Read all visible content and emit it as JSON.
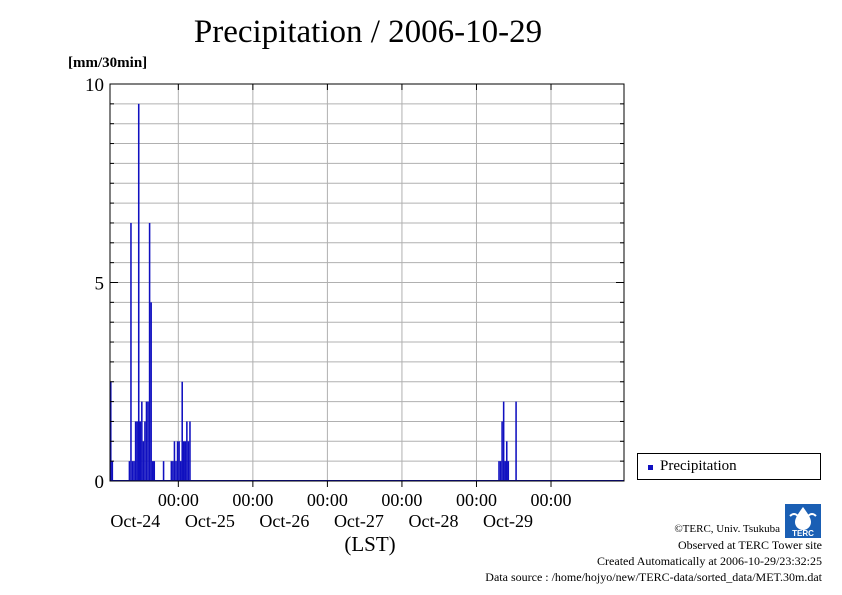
{
  "title": "Precipitation / 2006-10-29",
  "y_unit": "[mm/30min]",
  "x_unit": "(LST)",
  "legend": {
    "label": "Precipitation",
    "color": "#1010c0"
  },
  "credits": {
    "line1": "©TERC, Univ. Tsukuba",
    "line2": "Observed at TERC Tower site",
    "line3": "Created Automatically at 2006-10-29/23:32:25",
    "line4": "Data source : /home/hojyo/new/TERC-data/sorted_data/MET.30m.dat"
  },
  "logo_text": "TERC",
  "chart_data": {
    "type": "bar",
    "title": "Precipitation / 2006-10-29",
    "ylabel": "[mm/30min]",
    "xlabel": "(LST)",
    "ylim": [
      0,
      10
    ],
    "y_ticks": [
      "0",
      "5",
      "10"
    ],
    "x_ticks": [
      {
        "time": "00:00",
        "date": "Oct-24"
      },
      {
        "time": "00:00",
        "date": "Oct-25"
      },
      {
        "time": "00:00",
        "date": "Oct-26"
      },
      {
        "time": "00:00",
        "date": "Oct-27"
      },
      {
        "time": "00:00",
        "date": "Oct-28"
      },
      {
        "time": "00:00",
        "date": "Oct-29"
      }
    ],
    "xlim": [
      "2006-10-23 02:00",
      "2006-10-29 23:30"
    ],
    "grid": true,
    "legend_position": "right",
    "series": [
      {
        "name": "Precipitation",
        "color": "#1010c0",
        "x": [
          "2006-10-23 02:00",
          "2006-10-23 02:30",
          "2006-10-23 08:00",
          "2006-10-23 08:30",
          "2006-10-23 09:00",
          "2006-10-23 09:30",
          "2006-10-23 10:00",
          "2006-10-23 10:30",
          "2006-10-23 11:00",
          "2006-10-23 11:30",
          "2006-10-23 12:00",
          "2006-10-23 12:30",
          "2006-10-23 13:00",
          "2006-10-23 13:30",
          "2006-10-23 14:00",
          "2006-10-23 14:30",
          "2006-10-23 15:00",
          "2006-10-23 15:30",
          "2006-10-23 16:00",
          "2006-10-23 16:30",
          "2006-10-23 19:00",
          "2006-10-23 21:30",
          "2006-10-23 22:00",
          "2006-10-23 22:30",
          "2006-10-23 23:00",
          "2006-10-23 23:30",
          "2006-10-24 00:00",
          "2006-10-24 00:30",
          "2006-10-24 01:00",
          "2006-10-24 01:30",
          "2006-10-24 02:00",
          "2006-10-24 02:30",
          "2006-10-24 03:00",
          "2006-10-24 03:30",
          "2006-10-28 07:00",
          "2006-10-28 07:30",
          "2006-10-28 08:00",
          "2006-10-28 08:30",
          "2006-10-28 09:00",
          "2006-10-28 09:30",
          "2006-10-28 10:00",
          "2006-10-28 10:30",
          "2006-10-28 11:00",
          "2006-10-28 11:30",
          "2006-10-28 12:00",
          "2006-10-28 12:30"
        ],
        "values": [
          2.5,
          0.5,
          0.5,
          6.5,
          0.5,
          0.5,
          1.5,
          1.5,
          9.5,
          1.5,
          2.0,
          1.0,
          1.5,
          2.0,
          2.0,
          6.5,
          4.5,
          0.5,
          0.5,
          0,
          0.5,
          0.5,
          0.5,
          1.0,
          0.5,
          1.0,
          1.0,
          0.5,
          2.5,
          1.0,
          1.0,
          1.5,
          1.0,
          1.5,
          0.5,
          0.5,
          1.5,
          2.0,
          0.5,
          1.0,
          0.5,
          0,
          0,
          0,
          0,
          2.0
        ]
      }
    ]
  }
}
